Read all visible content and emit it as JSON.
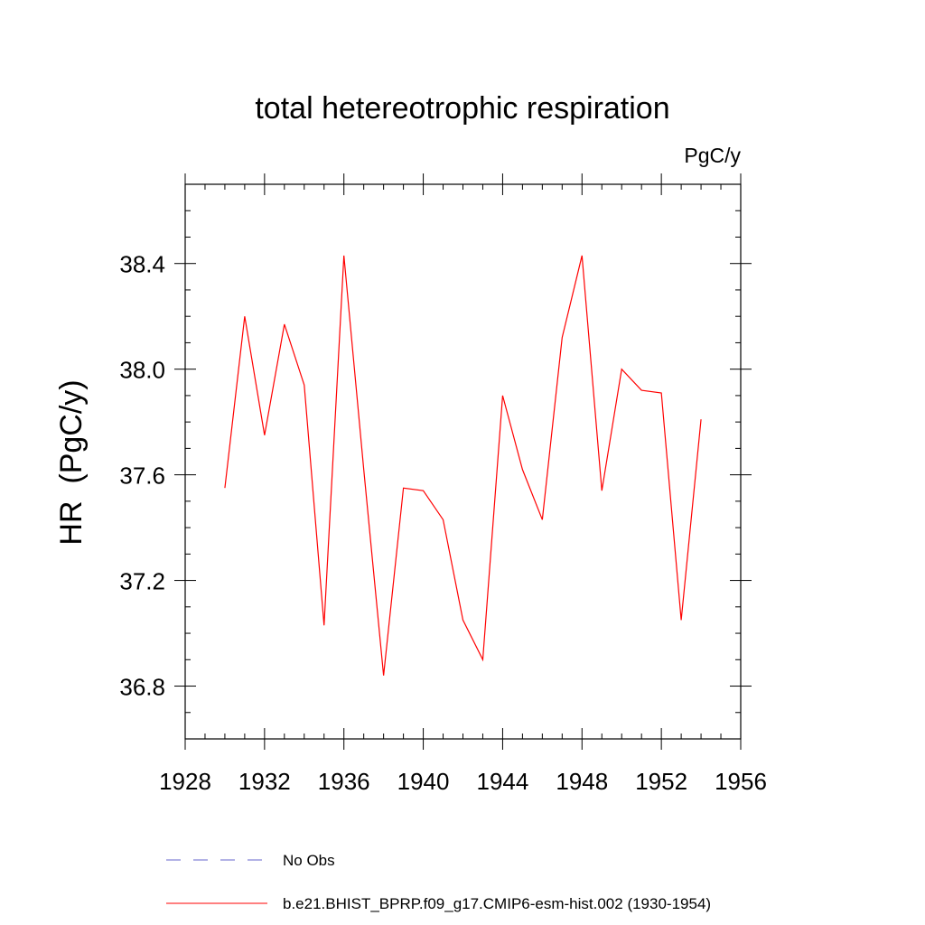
{
  "chart_data": {
    "type": "line",
    "title": "total hetereotrophic respiration",
    "units_label": "PgC/y",
    "xlabel": "",
    "ylabel": "HR  (PgC/y)",
    "xlim": [
      1928,
      1956
    ],
    "ylim": [
      36.6,
      38.7
    ],
    "x_ticks": [
      1928,
      1932,
      1936,
      1940,
      1944,
      1948,
      1952,
      1956
    ],
    "x_tick_labels": [
      "1928",
      "1932",
      "1936",
      "1940",
      "1944",
      "1948",
      "1952",
      "1956"
    ],
    "y_ticks": [
      36.8,
      37.2,
      37.6,
      38.0,
      38.4
    ],
    "y_tick_labels": [
      "36.8",
      "37.2",
      "37.6",
      "38.0",
      "38.4"
    ],
    "grid": false,
    "legend_position": "bottom",
    "series": [
      {
        "name": "b.e21.BHIST_BPRP.f09_g17.CMIP6-esm-hist.002 (1930-1954)",
        "color": "#ff0000",
        "style": "solid",
        "x": [
          1930,
          1931,
          1932,
          1933,
          1934,
          1935,
          1936,
          1937,
          1938,
          1939,
          1940,
          1941,
          1942,
          1943,
          1944,
          1945,
          1946,
          1947,
          1948,
          1949,
          1950,
          1951,
          1952,
          1953,
          1954
        ],
        "values": [
          37.55,
          38.2,
          37.75,
          38.17,
          37.94,
          37.03,
          38.43,
          37.62,
          36.84,
          37.55,
          37.54,
          37.43,
          37.05,
          36.9,
          37.9,
          37.62,
          37.43,
          38.12,
          38.43,
          37.54,
          38.0,
          37.92,
          37.91,
          37.05,
          37.81
        ]
      }
    ],
    "legend": [
      {
        "name": "No Obs",
        "color": "#6666cc",
        "style": "dashed"
      },
      {
        "name": "b.e21.BHIST_BPRP.f09_g17.CMIP6-esm-hist.002 (1930-1954)",
        "color": "#ff0000",
        "style": "solid"
      }
    ]
  }
}
